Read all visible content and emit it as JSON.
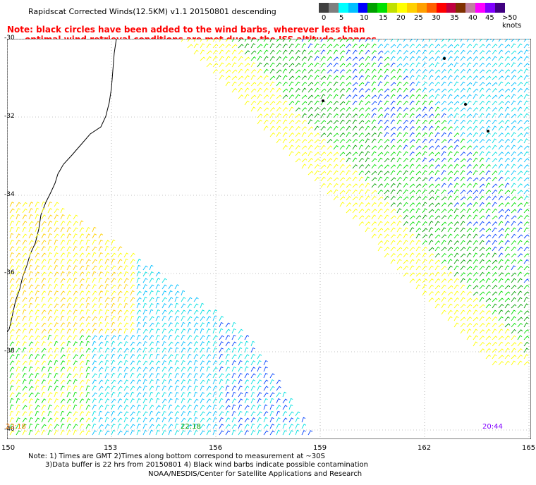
{
  "title": "Rapidscat Corrected Winds(12.5KM) v1.1 20150801 descending",
  "note_line1": "Note: black circles have been added to the wind barbs, wherever less than",
  "note_line2": "      optimal wind retrieval conditions are met due to the ISS altitude changes.",
  "colorbar": {
    "colors": [
      "#404040",
      "#7f7f7f",
      "#00ffff",
      "#00bfff",
      "#0000ff",
      "#00a000",
      "#00e000",
      "#c0e000",
      "#ffff00",
      "#ffd000",
      "#ffa000",
      "#ff6000",
      "#ff0000",
      "#c00040",
      "#7f3000",
      "#c080a0",
      "#ff00ff",
      "#8000ff",
      "#400080"
    ],
    "labels": [
      "0",
      "5",
      "10",
      "15",
      "20",
      "25",
      "30",
      "35",
      "40",
      "45",
      ">50 knots"
    ]
  },
  "lat_labels": [
    "-30",
    "-32",
    "-34",
    "-36",
    "-38",
    "-40"
  ],
  "lon_labels": [
    "150",
    "153",
    "156",
    "159",
    "162",
    "165"
  ],
  "times": [
    {
      "label": "22:18",
      "color": "#ff8000"
    },
    {
      "label": "22:18",
      "color": "#00a000"
    },
    {
      "label": "20:44",
      "color": "#8000ff"
    }
  ],
  "footer_line1": "Note: 1) Times are GMT 2)Times along bottom correspond to measurement at ~30S",
  "footer_line2": "3)Data buffer is 22 hrs from 20150801 4) Black wind barbs indicate possible contamination",
  "footer_line3": "NOAA/NESDIS/Center for Satellite Applications and Research"
}
